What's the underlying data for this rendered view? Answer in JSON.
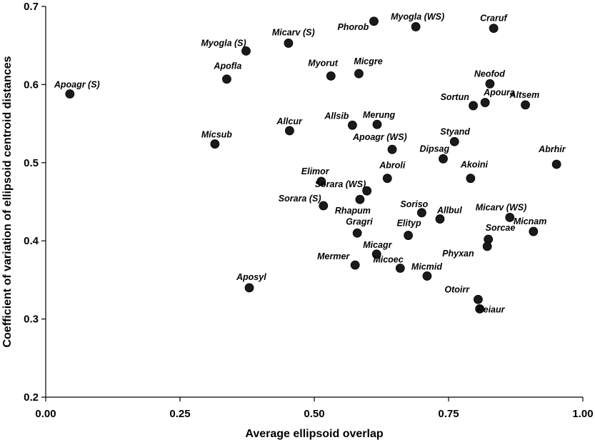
{
  "chart_data": {
    "type": "scatter",
    "xlabel": "Average ellipsoid overlap",
    "ylabel": "Coefficient of variation of ellipsoid centroid distances",
    "xlim": [
      0.0,
      1.0
    ],
    "ylim": [
      0.2,
      0.7
    ],
    "xticks": [
      "0.00",
      "0.25",
      "0.50",
      "0.75",
      "1.00"
    ],
    "yticks": [
      "0.2",
      "0.3",
      "0.4",
      "0.5",
      "0.6",
      "0.7"
    ],
    "grid": false,
    "points": [
      {
        "label": "Apoagr (S)",
        "x": 0.045,
        "y": 0.588
      },
      {
        "label": "Apofla",
        "x": 0.337,
        "y": 0.607
      },
      {
        "label": "Myogla (S)",
        "x": 0.373,
        "y": 0.643
      },
      {
        "label": "Micarv (S)",
        "x": 0.452,
        "y": 0.653
      },
      {
        "label": "Micsub",
        "x": 0.315,
        "y": 0.524
      },
      {
        "label": "Allcur",
        "x": 0.454,
        "y": 0.541
      },
      {
        "label": "Myorut",
        "x": 0.531,
        "y": 0.611
      },
      {
        "label": "Micgre",
        "x": 0.583,
        "y": 0.614
      },
      {
        "label": "Phorob",
        "x": 0.611,
        "y": 0.681
      },
      {
        "label": "Myogla (WS)",
        "x": 0.689,
        "y": 0.674
      },
      {
        "label": "Craruf",
        "x": 0.834,
        "y": 0.672
      },
      {
        "label": "Neofod",
        "x": 0.827,
        "y": 0.601
      },
      {
        "label": "Apoura",
        "x": 0.818,
        "y": 0.577
      },
      {
        "label": "Sortun",
        "x": 0.796,
        "y": 0.573
      },
      {
        "label": "Altsem",
        "x": 0.893,
        "y": 0.574
      },
      {
        "label": "Allsib",
        "x": 0.571,
        "y": 0.548
      },
      {
        "label": "Merung",
        "x": 0.617,
        "y": 0.549
      },
      {
        "label": "Styand",
        "x": 0.761,
        "y": 0.527
      },
      {
        "label": "Apoagr (WS)",
        "x": 0.645,
        "y": 0.517
      },
      {
        "label": "Dipsag",
        "x": 0.74,
        "y": 0.505
      },
      {
        "label": "Abrhir",
        "x": 0.951,
        "y": 0.498
      },
      {
        "label": "Abroli",
        "x": 0.636,
        "y": 0.48
      },
      {
        "label": "Akoini",
        "x": 0.791,
        "y": 0.48
      },
      {
        "label": "Elimor",
        "x": 0.513,
        "y": 0.476
      },
      {
        "label": "Sorara (WS)",
        "x": 0.598,
        "y": 0.464
      },
      {
        "label": "Rhapum",
        "x": 0.585,
        "y": 0.453
      },
      {
        "label": "Sorara (S)",
        "x": 0.517,
        "y": 0.445
      },
      {
        "label": "Soriso",
        "x": 0.7,
        "y": 0.436
      },
      {
        "label": "Allbul",
        "x": 0.734,
        "y": 0.428
      },
      {
        "label": "Micarv (WS)",
        "x": 0.864,
        "y": 0.43
      },
      {
        "label": "Micnam",
        "x": 0.908,
        "y": 0.412
      },
      {
        "label": "Gragri",
        "x": 0.58,
        "y": 0.41
      },
      {
        "label": "Elityp",
        "x": 0.675,
        "y": 0.407
      },
      {
        "label": "Sorcae",
        "x": 0.824,
        "y": 0.402
      },
      {
        "label": "Phyxan",
        "x": 0.822,
        "y": 0.393
      },
      {
        "label": "Micagr",
        "x": 0.616,
        "y": 0.383
      },
      {
        "label": "Mermer",
        "x": 0.576,
        "y": 0.369
      },
      {
        "label": "Micoec",
        "x": 0.66,
        "y": 0.365
      },
      {
        "label": "Micmid",
        "x": 0.71,
        "y": 0.355
      },
      {
        "label": "Aposyl",
        "x": 0.379,
        "y": 0.34
      },
      {
        "label": "Otoirr",
        "x": 0.805,
        "y": 0.325
      },
      {
        "label": "Reiaur",
        "x": 0.808,
        "y": 0.313
      }
    ]
  }
}
